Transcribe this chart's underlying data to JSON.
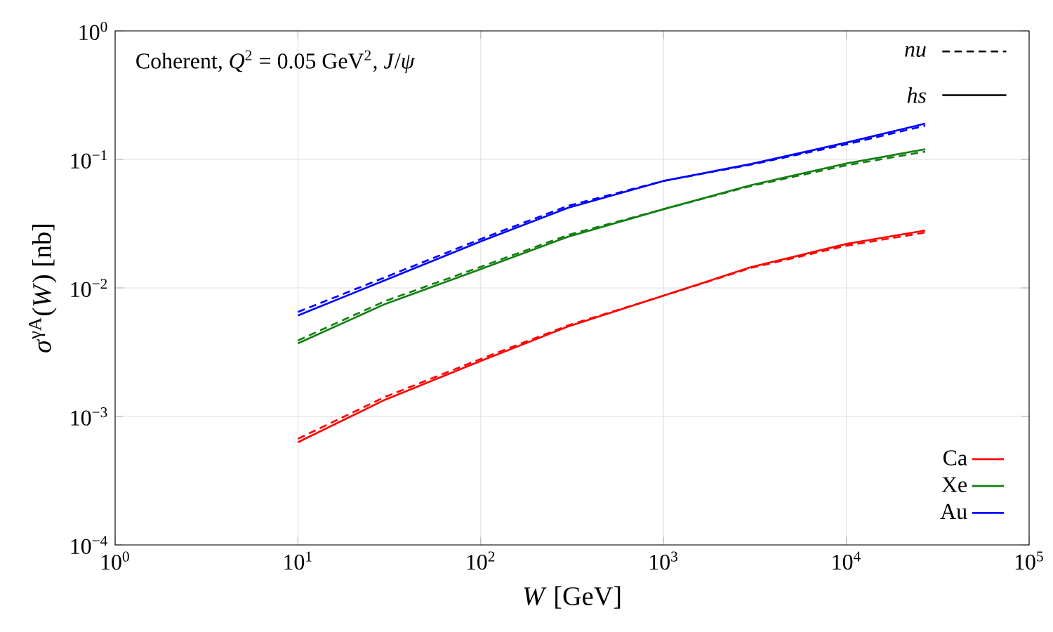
{
  "chart_data": {
    "type": "line",
    "title": "Coherent, *Q*$^{2}$ = 0.05 GeV$^{2}$, *J*/*ψ*",
    "xlabel": "*W* [GeV]",
    "ylabel": "*σ*$^{γA}$(*W*) [nb]",
    "log": "xy",
    "grid": true,
    "legend": "bottom right",
    "xlim": [
      1,
      100000
    ],
    "ylim": [
      0.0001,
      1
    ],
    "xticks": [
      {
        "value": 1,
        "label": "10$^{0}$"
      },
      {
        "value": 10,
        "label": "10$^{1}$"
      },
      {
        "value": 100,
        "label": "10$^{2}$"
      },
      {
        "value": 1000,
        "label": "10$^{3}$"
      },
      {
        "value": 10000,
        "label": "10$^{4}$"
      },
      {
        "value": 100000,
        "label": "10$^{5}$"
      }
    ],
    "yticks": [
      {
        "value": 0.0001,
        "label": "10$^{−4}$"
      },
      {
        "value": 0.001,
        "label": "10$^{−3}$"
      },
      {
        "value": 0.01,
        "label": "10$^{−2}$"
      },
      {
        "value": 0.1,
        "label": "10$^{−1}$"
      },
      {
        "value": 1,
        "label": "10$^{0}$"
      }
    ],
    "x": [
      10,
      30,
      100,
      300,
      1000,
      3000,
      10000,
      27000
    ],
    "annotations": [
      "nu",
      "hs"
    ],
    "series": [
      {
        "color": "#ff0000",
        "line_style": "dashed",
        "values": [
          0.00067,
          0.00142,
          0.0028,
          0.0051,
          0.0087,
          0.0143,
          0.0213,
          0.027
        ]
      },
      {
        "color": "#137f13",
        "line_style": "dashed",
        "values": [
          0.0039,
          0.0079,
          0.0146,
          0.0258,
          0.041,
          0.062,
          0.09,
          0.115
        ]
      },
      {
        "color": "#0000ff",
        "line_style": "dashed",
        "values": [
          0.0065,
          0.0121,
          0.024,
          0.0435,
          0.068,
          0.091,
          0.131,
          0.183
        ]
      },
      {
        "name": "Ca",
        "color": "#ff0000",
        "line_style": "solid",
        "values": [
          0.00063,
          0.00135,
          0.0027,
          0.005,
          0.0087,
          0.0145,
          0.022,
          0.028
        ]
      },
      {
        "name": "Xe",
        "color": "#137f13",
        "line_style": "solid",
        "values": [
          0.0037,
          0.0075,
          0.014,
          0.025,
          0.041,
          0.063,
          0.093,
          0.12
        ]
      },
      {
        "name": "Au",
        "color": "#0000ff",
        "line_style": "solid",
        "values": [
          0.0061,
          0.0115,
          0.023,
          0.042,
          0.068,
          0.092,
          0.135,
          0.19
        ]
      }
    ]
  }
}
